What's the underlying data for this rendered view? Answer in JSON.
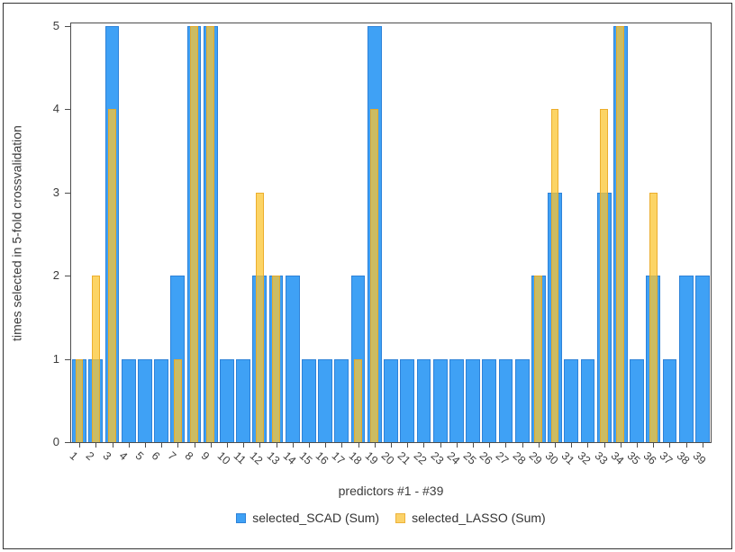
{
  "chart_data": {
    "type": "bar",
    "title": "",
    "xlabel": "predictors #1 - #39",
    "ylabel": "times selected in 5-fold crossvalidation",
    "categories": [
      "1",
      "2",
      "3",
      "4",
      "5",
      "6",
      "7",
      "8",
      "9",
      "10",
      "11",
      "12",
      "13",
      "14",
      "15",
      "16",
      "17",
      "18",
      "19",
      "20",
      "21",
      "22",
      "23",
      "24",
      "25",
      "26",
      "27",
      "28",
      "29",
      "30",
      "31",
      "32",
      "33",
      "34",
      "35",
      "36",
      "37",
      "38",
      "39"
    ],
    "series": [
      {
        "name": "selected_SCAD (Sum)",
        "color": "#3FA1F5",
        "values": [
          1,
          1,
          5,
          1,
          1,
          1,
          2,
          5,
          5,
          1,
          1,
          2,
          2,
          2,
          1,
          1,
          1,
          2,
          5,
          1,
          1,
          1,
          1,
          1,
          1,
          1,
          1,
          1,
          2,
          3,
          1,
          1,
          3,
          5,
          1,
          2,
          1,
          2,
          2
        ]
      },
      {
        "name": "selected_LASSO (Sum)",
        "color": "#FBC531",
        "values": [
          1,
          2,
          4,
          0,
          0,
          0,
          1,
          5,
          5,
          0,
          0,
          3,
          2,
          0,
          0,
          0,
          0,
          1,
          4,
          0,
          0,
          0,
          0,
          0,
          0,
          0,
          0,
          0,
          2,
          4,
          0,
          0,
          4,
          5,
          0,
          3,
          0,
          0,
          0
        ]
      }
    ],
    "ylim": [
      0,
      5
    ],
    "yticks": [
      "0",
      "1",
      "2",
      "3",
      "4",
      "5"
    ],
    "grid": false,
    "legend_position": "bottom",
    "bar_style": "overlapped (LASSO narrower, semi-transparent, drawn over SCAD)",
    "colors": {
      "scad_fill": "#3FA1F5",
      "scad_border": "#2E82D8",
      "lasso_fill": "#FBC531",
      "lasso_border": "#E9A723",
      "frame": "#4D4D4D",
      "text": "#3B3B3B"
    }
  }
}
